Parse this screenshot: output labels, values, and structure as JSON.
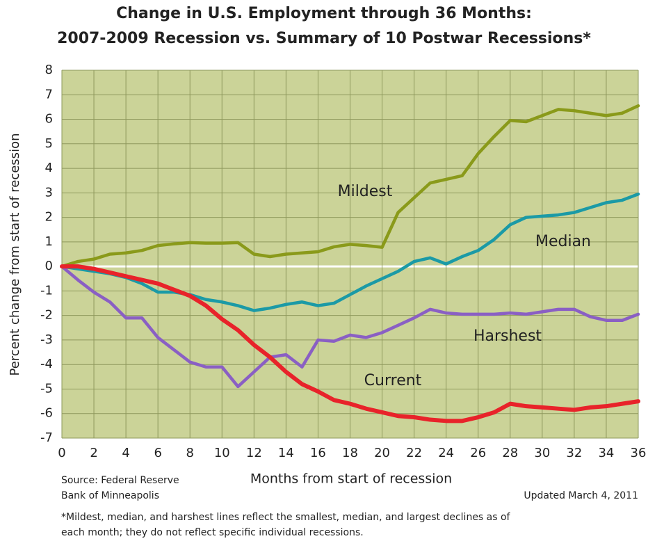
{
  "chart_data": {
    "type": "line",
    "title": [
      "Change in U.S. Employment through 36 Months:",
      "2007-2009 Recession vs. Summary of 10 Postwar Recessions*"
    ],
    "xlabel": "Months from start of recession",
    "ylabel": "Percent change from start of recession",
    "source": [
      "Source: Federal Reserve",
      "Bank of Minneapolis"
    ],
    "updated": "Updated March 4, 2011",
    "footnote": [
      "*Mildest, median, and harshest lines reflect the smallest, median, and largest declines as of",
      "each month; they do not reflect specific individual recessions."
    ],
    "x": [
      0,
      1,
      2,
      3,
      4,
      5,
      6,
      7,
      8,
      9,
      10,
      11,
      12,
      13,
      14,
      15,
      16,
      17,
      18,
      19,
      20,
      21,
      22,
      23,
      24,
      25,
      26,
      27,
      28,
      29,
      30,
      31,
      32,
      33,
      34,
      35,
      36
    ],
    "xlim": [
      0,
      36
    ],
    "xticks": [
      0,
      2,
      4,
      6,
      8,
      10,
      12,
      14,
      16,
      18,
      20,
      22,
      24,
      26,
      28,
      30,
      32,
      34,
      36
    ],
    "ylim": [
      -7,
      8
    ],
    "yticks": [
      -7,
      -6,
      -5,
      -4,
      -3,
      -2,
      -1,
      0,
      1,
      2,
      3,
      4,
      5,
      6,
      7,
      8
    ],
    "grid": true,
    "series": [
      {
        "name": "Mildest",
        "color": "#8a9a1a",
        "values": [
          0,
          0.2,
          0.3,
          0.5,
          0.55,
          0.65,
          0.85,
          0.92,
          0.97,
          0.95,
          0.95,
          0.97,
          0.5,
          0.4,
          0.5,
          0.55,
          0.6,
          0.8,
          0.9,
          0.85,
          0.78,
          2.2,
          2.8,
          3.4,
          3.55,
          3.7,
          4.6,
          5.3,
          5.95,
          5.9,
          6.15,
          6.4,
          6.35,
          6.25,
          6.15,
          6.25,
          6.55
        ]
      },
      {
        "name": "Median",
        "color": "#1b9aa6",
        "values": [
          0,
          -0.1,
          -0.2,
          -0.3,
          -0.45,
          -0.7,
          -1.05,
          -1.05,
          -1.15,
          -1.35,
          -1.45,
          -1.6,
          -1.8,
          -1.7,
          -1.55,
          -1.45,
          -1.6,
          -1.5,
          -1.15,
          -0.8,
          -0.5,
          -0.2,
          0.2,
          0.35,
          0.1,
          0.4,
          0.65,
          1.1,
          1.7,
          2.0,
          2.05,
          2.1,
          2.2,
          2.4,
          2.6,
          2.7,
          2.95
        ]
      },
      {
        "name": "Harshest",
        "color": "#8a5fc4",
        "values": [
          0,
          -0.55,
          -1.05,
          -1.45,
          -2.1,
          -2.1,
          -2.9,
          -3.4,
          -3.9,
          -4.1,
          -4.1,
          -4.9,
          -4.3,
          -3.7,
          -3.6,
          -4.1,
          -3.0,
          -3.05,
          -2.8,
          -2.9,
          -2.7,
          -2.4,
          -2.1,
          -1.75,
          -1.9,
          -1.95,
          -1.95,
          -1.95,
          -1.9,
          -1.95,
          -1.85,
          -1.75,
          -1.75,
          -2.05,
          -2.2,
          -2.2,
          -1.95
        ]
      },
      {
        "name": "Current",
        "color": "#e8232a",
        "values": [
          0,
          0,
          -0.1,
          -0.25,
          -0.4,
          -0.55,
          -0.7,
          -0.95,
          -1.2,
          -1.6,
          -2.15,
          -2.6,
          -3.2,
          -3.7,
          -4.3,
          -4.8,
          -5.1,
          -5.45,
          -5.6,
          -5.8,
          -5.95,
          -6.1,
          -6.15,
          -6.25,
          -6.3,
          -6.3,
          -6.15,
          -5.95,
          -5.6,
          -5.7,
          -5.75,
          -5.8,
          -5.85,
          -5.75,
          -5.7,
          -5.6,
          -5.5
        ]
      }
    ]
  }
}
